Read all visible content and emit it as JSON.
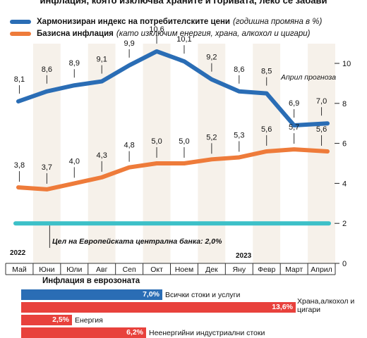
{
  "header": {
    "subtitle": "инфлация, която изключва храните и горивата, леко се забави"
  },
  "legend": [
    {
      "name": "Хармонизиран индекс на потребителските цени",
      "note": "(годишна промяна в %)",
      "color": "#2a6db5"
    },
    {
      "name": "Базисна инфлация",
      "note": "(като изключим енергия, храна, алкохол и цигари)",
      "color": "#ee7b3a"
    }
  ],
  "annotations": {
    "forecast": "Април прогноза",
    "ecb_target": "Цел на Европейската централна банка: 2,0%",
    "year_2022": "2022",
    "year_2023": "2023"
  },
  "chart_data": [
    {
      "type": "line",
      "categories": [
        "Май",
        "Юни",
        "Юли",
        "Авг",
        "Сеп",
        "Окт",
        "Ноем",
        "Дек",
        "Яну",
        "Февр",
        "Март",
        "Април"
      ],
      "series": [
        {
          "name": "Хармонизиран индекс на потребителските цени",
          "values": [
            8.1,
            8.6,
            8.9,
            9.1,
            9.9,
            10.6,
            10.1,
            9.2,
            8.6,
            8.5,
            6.9,
            7.0
          ],
          "labels": [
            "8,1",
            "8,6",
            "8,9",
            "9,1",
            "9,9",
            "10,6",
            "10,1",
            "9,2",
            "8,6",
            "8,5",
            "6,9",
            "7,0"
          ],
          "color": "#2a6db5"
        },
        {
          "name": "Базисна инфлация",
          "values": [
            3.8,
            3.7,
            4.0,
            4.3,
            4.8,
            5.0,
            5.0,
            5.2,
            5.3,
            5.6,
            5.7,
            5.6
          ],
          "labels": [
            "3,8",
            "3,7",
            "4,0",
            "4,3",
            "4,8",
            "5,0",
            "5,0",
            "5,2",
            "5,3",
            "5,6",
            "5,7",
            "5,6"
          ],
          "color": "#ee7b3a"
        }
      ],
      "reference_line": {
        "value": 2.0,
        "color": "#3cc0c8"
      },
      "yticks": [
        "0",
        "2",
        "4",
        "6",
        "8",
        "10"
      ],
      "ylim": [
        0,
        11
      ],
      "grid": false
    },
    {
      "type": "bar",
      "title": "Инфлация в еврозоната",
      "orientation": "horizontal",
      "categories": [
        "Всички стоки и услуги",
        "Храна,алкохол и цигари",
        "Енергия",
        "Неенергийни индустриални стоки"
      ],
      "values": [
        7.0,
        13.6,
        2.5,
        6.2
      ],
      "labels": [
        "7,0%",
        "13,6%",
        "2,5%",
        "6,2%"
      ],
      "colors": [
        "#2a6db5",
        "#e8413c",
        "#e8413c",
        "#e8413c"
      ]
    }
  ]
}
